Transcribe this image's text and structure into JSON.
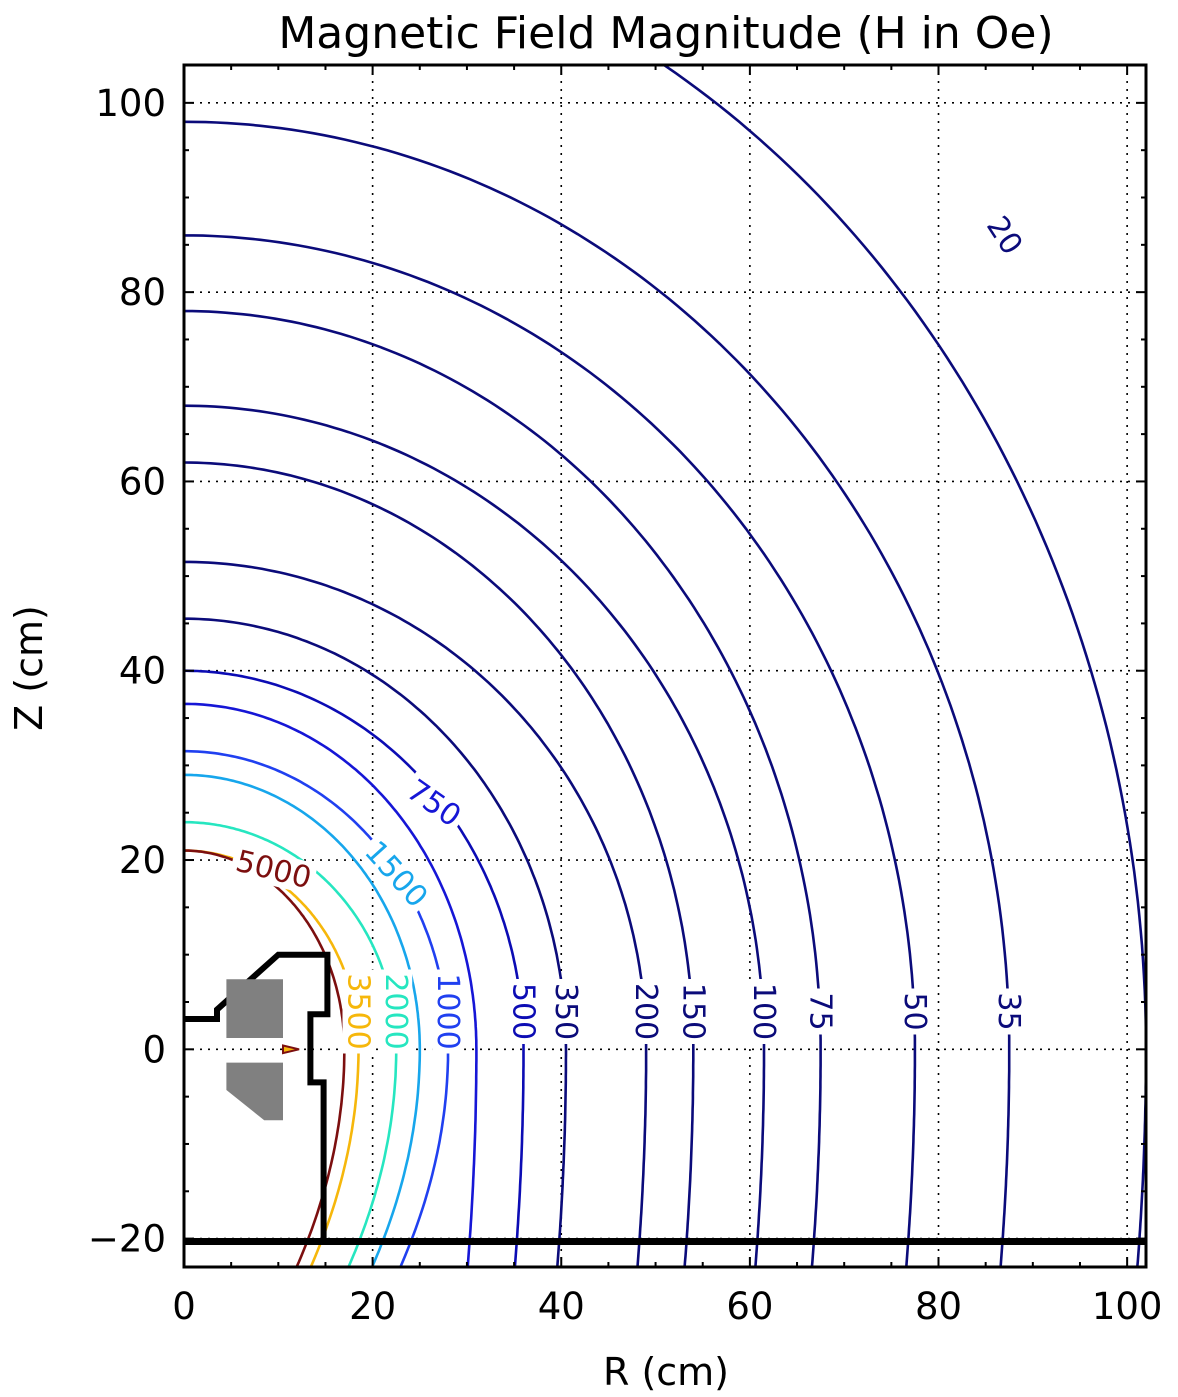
{
  "chart_data": {
    "type": "contour",
    "title": "Magnetic Field Magnitude (H in Oe)",
    "xlabel": "R (cm)",
    "ylabel": "Z (cm)",
    "xlim": [
      0,
      102
    ],
    "ylim": [
      -23,
      104
    ],
    "xticks": [
      0,
      20,
      40,
      60,
      80,
      100
    ],
    "yticks": [
      -20,
      0,
      20,
      40,
      60,
      80,
      100
    ],
    "xtick_labels": [
      "0",
      "20",
      "40",
      "60",
      "80",
      "100"
    ],
    "ytick_labels": [
      "−20",
      "0",
      "20",
      "40",
      "60",
      "80",
      "100"
    ],
    "grid": true,
    "contours": [
      {
        "level": "20",
        "color": "#0b0b7a",
        "z_axis": 120,
        "r_mid": 102
      },
      {
        "level": "35",
        "color": "#0b0b7a",
        "z_axis": 98,
        "r_mid": 87.5
      },
      {
        "level": "50",
        "color": "#0b0b7a",
        "z_axis": 86,
        "r_mid": 77.5
      },
      {
        "level": "75",
        "color": "#0b0b7a",
        "z_axis": 78,
        "r_mid": 67.5
      },
      {
        "level": "100",
        "color": "#0b0b7a",
        "z_axis": 68,
        "r_mid": 61.5
      },
      {
        "level": "150",
        "color": "#0b0b7a",
        "z_axis": 62,
        "r_mid": 54
      },
      {
        "level": "200",
        "color": "#0b0b7a",
        "z_axis": 51.5,
        "r_mid": 49
      },
      {
        "level": "350",
        "color": "#0b0b7a",
        "z_axis": 45.5,
        "r_mid": 40.5
      },
      {
        "level": "500",
        "color": "#0c0cb4",
        "z_axis": 40,
        "r_mid": 36
      },
      {
        "level": "750",
        "color": "#1616d6",
        "z_axis": 36.5,
        "r_mid": 31
      },
      {
        "level": "1000",
        "color": "#2040f0",
        "z_axis": 31.5,
        "r_mid": 28
      },
      {
        "level": "1500",
        "color": "#17a6ec",
        "z_axis": 29,
        "r_mid": 25
      },
      {
        "level": "2000",
        "color": "#26e6c0",
        "z_axis": 24,
        "r_mid": 22.5
      },
      {
        "level": "3500",
        "color": "#f6b70b",
        "z_axis": 21,
        "r_mid": 18.5
      },
      {
        "level": "5000",
        "color": "#7c0f0f",
        "z_axis": 21,
        "r_mid": 17
      }
    ],
    "geometry_outline_color": "#000000",
    "magnet_fill_color": "#808080"
  }
}
